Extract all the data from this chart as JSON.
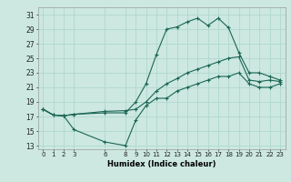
{
  "xlabel": "Humidex (Indice chaleur)",
  "bg_color": "#cce8e0",
  "line_color": "#1a6655",
  "grid_color": "#b0d8cc",
  "yticks": [
    13,
    15,
    17,
    19,
    21,
    23,
    25,
    27,
    29,
    31
  ],
  "xticks": [
    0,
    1,
    2,
    3,
    6,
    8,
    9,
    10,
    11,
    12,
    13,
    14,
    15,
    16,
    17,
    18,
    19,
    20,
    21,
    22,
    23
  ],
  "xlim": [
    -0.5,
    23.5
  ],
  "ylim": [
    12.5,
    32.0
  ],
  "line1_x": [
    0,
    1,
    2,
    3,
    6,
    8,
    9,
    10,
    11,
    12,
    13,
    14,
    15,
    16,
    17,
    18,
    19,
    20,
    21,
    22,
    23
  ],
  "line1_y": [
    18.0,
    17.2,
    17.1,
    17.3,
    17.5,
    17.5,
    19.0,
    21.5,
    25.5,
    29.0,
    29.3,
    30.0,
    30.5,
    29.5,
    30.5,
    29.2,
    25.8,
    23.0,
    23.0,
    22.5,
    22.0
  ],
  "line2_x": [
    0,
    1,
    2,
    3,
    6,
    8,
    9,
    10,
    11,
    12,
    13,
    14,
    15,
    16,
    17,
    18,
    19,
    20,
    21,
    22,
    23
  ],
  "line2_y": [
    18.0,
    17.2,
    17.1,
    17.3,
    17.7,
    17.8,
    18.0,
    19.0,
    20.5,
    21.5,
    22.2,
    23.0,
    23.5,
    24.0,
    24.5,
    25.0,
    25.2,
    22.0,
    21.8,
    22.0,
    21.8
  ],
  "line3_x": [
    0,
    1,
    2,
    3,
    6,
    8,
    9,
    10,
    11,
    12,
    13,
    14,
    15,
    16,
    17,
    18,
    19,
    20,
    21,
    22,
    23
  ],
  "line3_y": [
    18.0,
    17.2,
    17.1,
    15.2,
    13.5,
    13.0,
    16.5,
    18.5,
    19.5,
    19.5,
    20.5,
    21.0,
    21.5,
    22.0,
    22.5,
    22.5,
    23.0,
    21.5,
    21.0,
    21.0,
    21.5
  ]
}
